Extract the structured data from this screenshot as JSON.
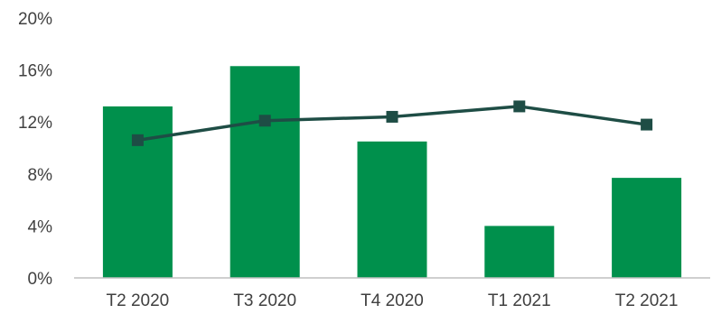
{
  "chart_data": {
    "type": "bar",
    "categories": [
      "T2 2020",
      "T3 2020",
      "T4 2020",
      "T1 2021",
      "T2 2021"
    ],
    "series": [
      {
        "type": "bar",
        "values": [
          13.2,
          16.3,
          10.5,
          4.0,
          7.7
        ],
        "color": "#00904c"
      },
      {
        "type": "line",
        "marker": "square",
        "values": [
          10.6,
          12.1,
          12.4,
          13.2,
          11.8
        ],
        "color": "#1e4d45"
      }
    ],
    "ylim": [
      0,
      20
    ],
    "y_ticks": [
      0,
      4,
      8,
      12,
      16,
      20
    ],
    "y_tick_labels": [
      "0%",
      "4%",
      "8%",
      "12%",
      "16%",
      "20%"
    ],
    "title": "",
    "xlabel": "",
    "ylabel": "",
    "grid": false,
    "legend": "none",
    "axis_color": "#bfbfbf"
  }
}
